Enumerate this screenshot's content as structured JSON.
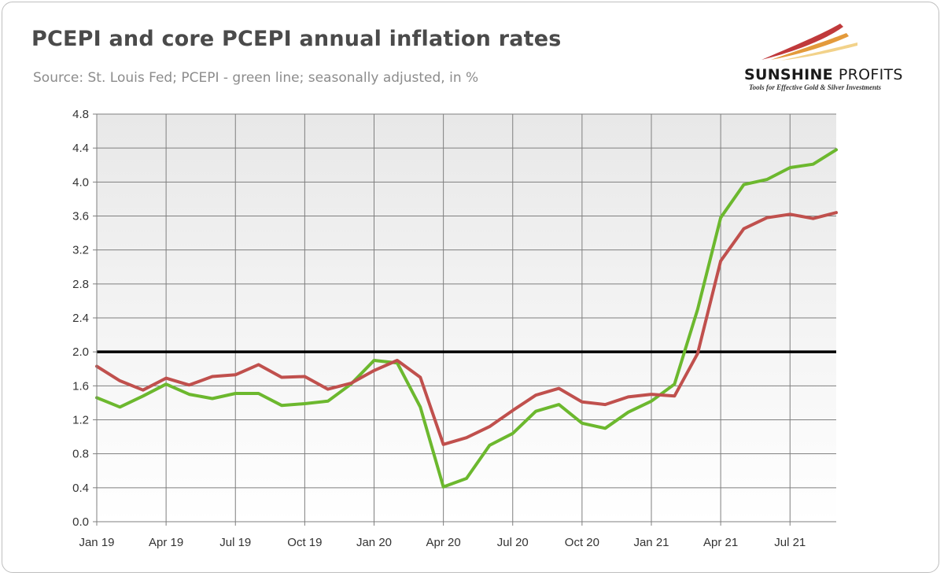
{
  "title": "PCEPI and core PCEPI annual inflation rates",
  "subtitle": "Source: St. Louis Fed; PCEPI - green line; seasonally adjusted, in %",
  "logo": {
    "name_bold": "SUNSHINE",
    "name_thin": "PROFITS",
    "tagline": "Tools for Effective Gold & Silver Investments",
    "colors": [
      "#c0393b",
      "#e39a3b",
      "#f2d28a"
    ]
  },
  "chart_data": {
    "type": "line",
    "title": "PCEPI and core PCEPI annual inflation rates",
    "xlabel": "",
    "ylabel": "",
    "ylim": [
      0,
      4.8
    ],
    "yticks": [
      0.0,
      0.4,
      0.8,
      1.2,
      1.6,
      2.0,
      2.4,
      2.8,
      3.2,
      3.6,
      4.0,
      4.4,
      4.8
    ],
    "ytick_labels": [
      "0.0",
      "0.4",
      "0.8",
      "1.2",
      "1.6",
      "2.0",
      "2.4",
      "2.8",
      "3.2",
      "3.6",
      "4.0",
      "4.4",
      "4.8"
    ],
    "x_tick_labels": [
      "Jan 19",
      "Apr 19",
      "Jul 19",
      "Oct 19",
      "Jan 20",
      "Apr 20",
      "Jul 20",
      "Oct 20",
      "Jan 21",
      "Apr 21",
      "Jul 21"
    ],
    "x": [
      "2019-01",
      "2019-02",
      "2019-03",
      "2019-04",
      "2019-05",
      "2019-06",
      "2019-07",
      "2019-08",
      "2019-09",
      "2019-10",
      "2019-11",
      "2019-12",
      "2020-01",
      "2020-02",
      "2020-03",
      "2020-04",
      "2020-05",
      "2020-06",
      "2020-07",
      "2020-08",
      "2020-09",
      "2020-10",
      "2020-11",
      "2020-12",
      "2021-01",
      "2021-02",
      "2021-03",
      "2021-04",
      "2021-05",
      "2021-06",
      "2021-07",
      "2021-08",
      "2021-09"
    ],
    "grid": true,
    "reference_line": {
      "y": 2.0,
      "color": "#000000"
    },
    "series": [
      {
        "color": "#6cb82e",
        "values": [
          1.46,
          1.35,
          1.48,
          1.62,
          1.5,
          1.45,
          1.51,
          1.51,
          1.37,
          1.39,
          1.42,
          1.62,
          1.9,
          1.87,
          1.35,
          0.41,
          0.51,
          0.9,
          1.04,
          1.3,
          1.38,
          1.16,
          1.1,
          1.29,
          1.42,
          1.62,
          2.5,
          3.58,
          3.97,
          4.03,
          4.17,
          4.21,
          4.38
        ]
      },
      {
        "color": "#c0504d",
        "values": [
          1.83,
          1.66,
          1.55,
          1.69,
          1.61,
          1.71,
          1.73,
          1.85,
          1.7,
          1.71,
          1.56,
          1.63,
          1.78,
          1.9,
          1.7,
          0.91,
          0.99,
          1.12,
          1.31,
          1.49,
          1.57,
          1.41,
          1.38,
          1.47,
          1.5,
          1.48,
          1.98,
          3.07,
          3.45,
          3.58,
          3.62,
          3.57,
          3.64
        ]
      }
    ]
  }
}
